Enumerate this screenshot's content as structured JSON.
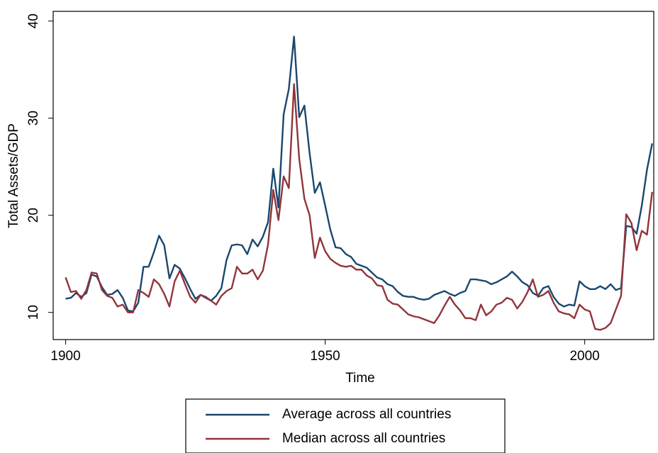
{
  "chart_data": {
    "type": "line",
    "x_label": "Time",
    "y_label": "Total Assets/GDP",
    "x": [
      1900,
      1901,
      1902,
      1903,
      1904,
      1905,
      1906,
      1907,
      1908,
      1909,
      1910,
      1911,
      1912,
      1913,
      1914,
      1915,
      1916,
      1917,
      1918,
      1919,
      1920,
      1921,
      1922,
      1923,
      1924,
      1925,
      1926,
      1927,
      1928,
      1929,
      1930,
      1931,
      1932,
      1933,
      1934,
      1935,
      1936,
      1937,
      1938,
      1939,
      1940,
      1941,
      1942,
      1943,
      1944,
      1945,
      1946,
      1947,
      1948,
      1949,
      1950,
      1951,
      1952,
      1953,
      1954,
      1955,
      1956,
      1957,
      1958,
      1959,
      1960,
      1961,
      1962,
      1963,
      1964,
      1965,
      1966,
      1967,
      1968,
      1969,
      1970,
      1971,
      1972,
      1973,
      1974,
      1975,
      1976,
      1977,
      1978,
      1979,
      1980,
      1981,
      1982,
      1983,
      1984,
      1985,
      1986,
      1987,
      1988,
      1989,
      1990,
      1991,
      1992,
      1993,
      1994,
      1995,
      1996,
      1997,
      1998,
      1999,
      2000,
      2001,
      2002,
      2003,
      2004,
      2005,
      2006,
      2007,
      2008,
      2009,
      2010,
      2011,
      2012,
      2013
    ],
    "series": [
      {
        "name": "Average across all countries",
        "color": "#1a476f",
        "values": [
          11.4,
          11.5,
          12.0,
          11.6,
          12.0,
          13.9,
          13.7,
          12.6,
          11.8,
          11.9,
          12.3,
          11.5,
          10.2,
          10.1,
          11.0,
          14.7,
          14.7,
          16.2,
          17.9,
          16.9,
          13.5,
          14.9,
          14.5,
          13.5,
          12.4,
          11.4,
          11.8,
          11.5,
          11.2,
          11.7,
          12.5,
          15.4,
          16.9,
          17.0,
          16.9,
          16.0,
          17.5,
          16.8,
          17.8,
          19.3,
          24.8,
          20.8,
          30.4,
          33.0,
          38.4,
          30.1,
          31.3,
          26.4,
          22.3,
          23.4,
          21.0,
          18.5,
          16.7,
          16.6,
          16.0,
          15.7,
          15.0,
          14.8,
          14.6,
          14.1,
          13.6,
          13.4,
          12.9,
          12.7,
          12.1,
          11.7,
          11.6,
          11.6,
          11.4,
          11.3,
          11.4,
          11.8,
          12.0,
          12.2,
          11.9,
          11.7,
          12.0,
          12.2,
          13.4,
          13.4,
          13.3,
          13.2,
          12.9,
          13.1,
          13.4,
          13.7,
          14.2,
          13.7,
          13.1,
          12.8,
          12.0,
          11.7,
          12.5,
          12.7,
          11.6,
          10.9,
          10.6,
          10.8,
          10.7,
          13.2,
          12.7,
          12.4,
          12.4,
          12.7,
          12.4,
          12.9,
          12.3,
          12.5,
          18.9,
          18.8,
          18.1,
          21.0,
          24.7,
          27.4
        ]
      },
      {
        "name": "Median across all countries",
        "color": "#90353b",
        "values": [
          13.6,
          12.1,
          12.2,
          11.4,
          12.3,
          14.1,
          14.0,
          12.3,
          11.7,
          11.5,
          10.6,
          10.8,
          10.0,
          10.0,
          12.3,
          12.0,
          11.6,
          13.4,
          12.9,
          11.9,
          10.6,
          13.2,
          14.3,
          12.9,
          11.6,
          11.0,
          11.8,
          11.6,
          11.2,
          10.8,
          11.7,
          12.2,
          12.5,
          14.7,
          14.0,
          14.0,
          14.4,
          13.4,
          14.3,
          17.0,
          22.6,
          19.5,
          24.0,
          22.8,
          33.5,
          25.8,
          21.7,
          20.0,
          15.6,
          17.7,
          16.3,
          15.5,
          15.1,
          14.8,
          14.7,
          14.8,
          14.4,
          14.4,
          13.8,
          13.5,
          12.8,
          12.7,
          11.3,
          10.9,
          10.8,
          10.3,
          9.8,
          9.6,
          9.5,
          9.3,
          9.1,
          8.9,
          9.7,
          10.7,
          11.6,
          10.8,
          10.2,
          9.4,
          9.4,
          9.2,
          10.8,
          9.7,
          10.1,
          10.8,
          11.0,
          11.5,
          11.3,
          10.4,
          11.1,
          12.1,
          13.4,
          11.6,
          11.8,
          12.2,
          11.0,
          10.1,
          9.9,
          9.8,
          9.4,
          10.8,
          10.3,
          10.1,
          8.3,
          8.2,
          8.4,
          8.9,
          10.3,
          11.7,
          20.1,
          19.2,
          16.4,
          18.4,
          18.0,
          22.4
        ]
      }
    ],
    "xlim": [
      1897.6,
      2013.3
    ],
    "xticks": [
      1900,
      1950,
      2000
    ],
    "ylim": [
      7.2,
      41
    ],
    "yticks": [
      10,
      20,
      30,
      40
    ],
    "legend": "bottom"
  }
}
